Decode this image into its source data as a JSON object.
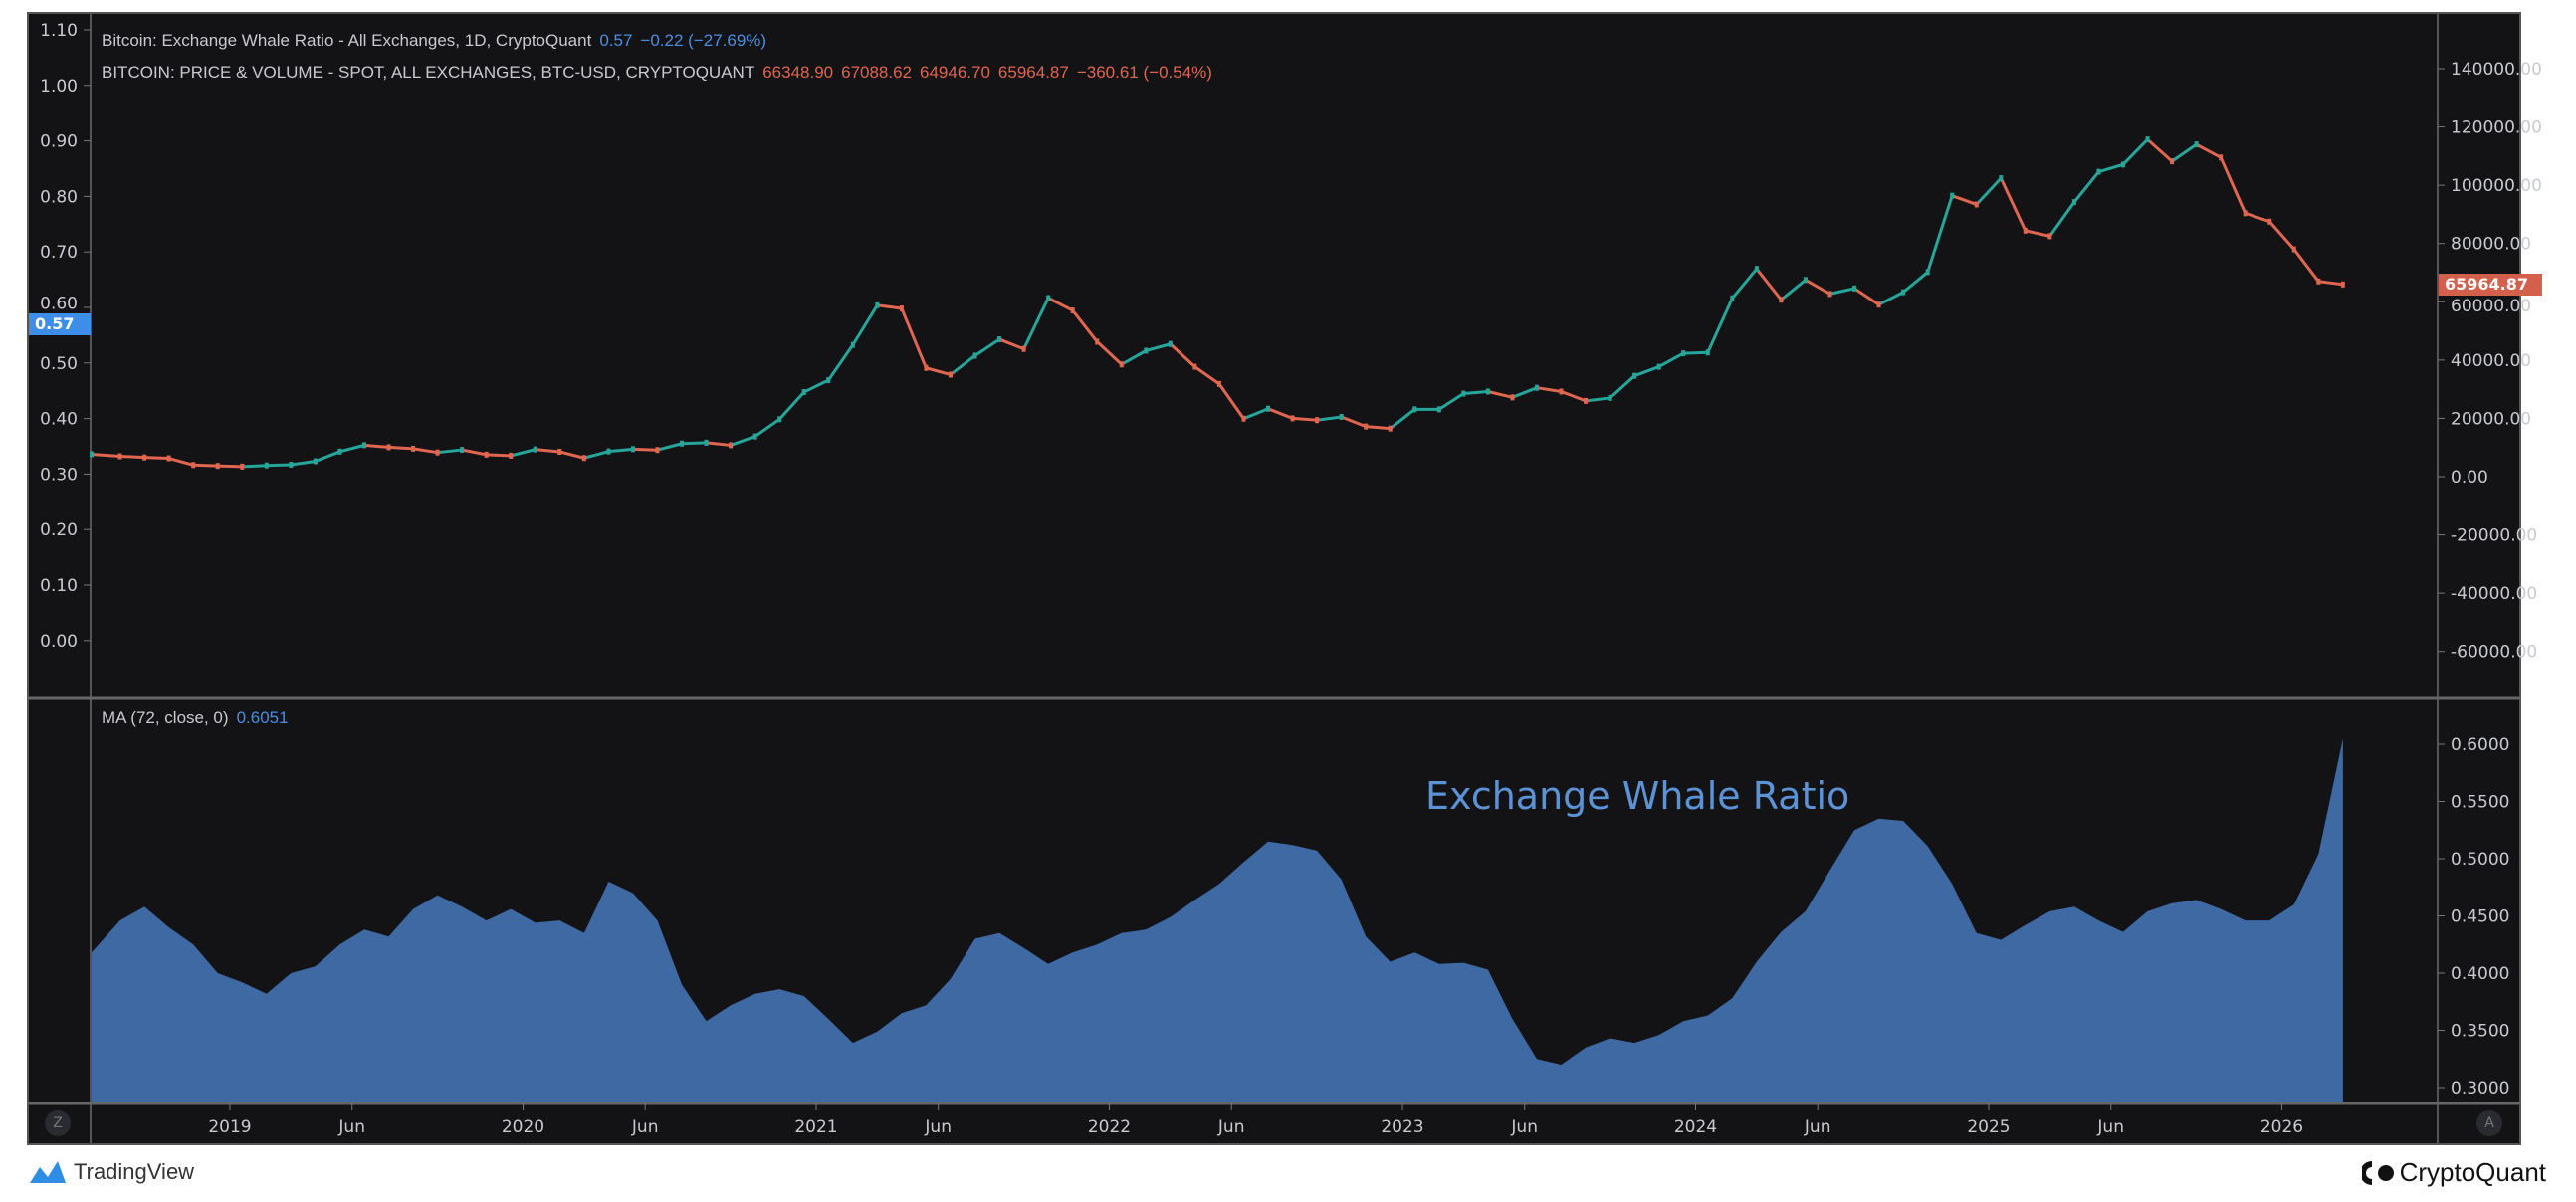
{
  "legend": {
    "line1_label": "Bitcoin: Exchange Whale Ratio - All Exchanges, 1D, CryptoQuant",
    "line1_values": [
      "0.57",
      "−0.22 (−27.69%)"
    ],
    "line2_label": "BITCOIN: PRICE & VOLUME - SPOT, ALL EXCHANGES, BTC-USD, CRYPTOQUANT",
    "line2_values": [
      "66348.90",
      "67088.62",
      "64946.70",
      "65964.87",
      "−360.61 (−0.54%)"
    ],
    "ma_label": "MA (72, close, 0)",
    "ma_value": "0.6051"
  },
  "annotation": "Exchange Whale Ratio",
  "badges": {
    "ratio_last": "0.57",
    "price_last": "65964.87"
  },
  "buttons": {
    "left_corner": "Z",
    "right_corner": "A"
  },
  "footer": {
    "left_brand": "TradingView",
    "right_brand": "CryptoQuant"
  },
  "colors": {
    "background": "#131316",
    "area": "#3f69a3",
    "price_up": "#26a69a",
    "price_down": "#e0664f",
    "ratio_badge": "#3d8ee8",
    "price_badge": "#d3604a",
    "text": "#c8cad0"
  },
  "chart_data": [
    {
      "type": "line",
      "pane": "top",
      "series_label": "BITCOIN: PRICE & VOLUME - SPOT, ALL EXCHANGES, BTC-USD, CRYPTOQUANT",
      "left_axis_ticks": [
        "1.10",
        "1.00",
        "0.90",
        "0.80",
        "0.70",
        "0.60",
        "0.50",
        "0.40",
        "0.30",
        "0.20",
        "0.10",
        "0.00"
      ],
      "left_ylim": [
        -0.1,
        1.12
      ],
      "right_axis_ticks": [
        "140000.00",
        "120000.00",
        "100000.00",
        "80000.00",
        "60000.00",
        "40000.00",
        "20000.00",
        "0.00",
        "-20000.00",
        "-40000.00",
        "-60000.00"
      ],
      "right_ylim": [
        -70000,
        150000
      ],
      "x": [
        "2018-07",
        "2018-08",
        "2018-09",
        "2018-10",
        "2018-11",
        "2018-12",
        "2019-01",
        "2019-02",
        "2019-03",
        "2019-04",
        "2019-05",
        "2019-06",
        "2019-07",
        "2019-08",
        "2019-09",
        "2019-10",
        "2019-11",
        "2019-12",
        "2020-01",
        "2020-02",
        "2020-03",
        "2020-04",
        "2020-05",
        "2020-06",
        "2020-07",
        "2020-08",
        "2020-09",
        "2020-10",
        "2020-11",
        "2020-12",
        "2021-01",
        "2021-02",
        "2021-03",
        "2021-04",
        "2021-05",
        "2021-06",
        "2021-07",
        "2021-08",
        "2021-09",
        "2021-10",
        "2021-11",
        "2021-12",
        "2022-01",
        "2022-02",
        "2022-03",
        "2022-04",
        "2022-05",
        "2022-06",
        "2022-07",
        "2022-08",
        "2022-09",
        "2022-10",
        "2022-11",
        "2022-12",
        "2023-01",
        "2023-02",
        "2023-03",
        "2023-04",
        "2023-05",
        "2023-06",
        "2023-07",
        "2023-08",
        "2023-09",
        "2023-10",
        "2023-11",
        "2023-12",
        "2024-01",
        "2024-02",
        "2024-03",
        "2024-04",
        "2024-05",
        "2024-06",
        "2024-07",
        "2024-08",
        "2024-09",
        "2024-10",
        "2024-11",
        "2024-12",
        "2025-01",
        "2025-02",
        "2025-03",
        "2025-04",
        "2025-05",
        "2025-06",
        "2025-07",
        "2025-08",
        "2025-09",
        "2025-10",
        "2025-11",
        "2025-12",
        "2026-01",
        "2026-02",
        "2026-03"
      ],
      "values": [
        7700,
        7000,
        6600,
        6300,
        4000,
        3700,
        3450,
        3850,
        4100,
        5300,
        8600,
        10800,
        10100,
        9600,
        8300,
        9200,
        7550,
        7200,
        9350,
        8550,
        6400,
        8650,
        9450,
        9150,
        11350,
        11650,
        10780,
        13800,
        19700,
        29000,
        33100,
        45200,
        58800,
        57700,
        37300,
        35000,
        41500,
        47100,
        43800,
        61300,
        57000,
        46300,
        38500,
        43200,
        45500,
        37700,
        31800,
        19900,
        23300,
        20000,
        19400,
        20500,
        17200,
        16500,
        23100,
        23100,
        28500,
        29200,
        27200,
        30500,
        29200,
        26000,
        27000,
        34600,
        37700,
        42300,
        42600,
        61200,
        71300,
        60700,
        67500,
        62700,
        64600,
        59000,
        63300,
        70200,
        96400,
        93400,
        102400,
        84400,
        82500,
        94200,
        104600,
        107100,
        115700,
        108200,
        114000,
        109500,
        90400,
        87500,
        78000,
        67000,
        65964.87
      ]
    },
    {
      "type": "area",
      "pane": "bottom",
      "series_label": "MA (72, close, 0)",
      "right_axis_ticks": [
        "0.6000",
        "0.5500",
        "0.5000",
        "0.4500",
        "0.4000",
        "0.3500",
        "0.3000"
      ],
      "ylim": [
        0.293,
        0.64
      ],
      "x_ticks": [
        "2019",
        "Jun",
        "2020",
        "Jun",
        "2021",
        "Jun",
        "2022",
        "Jun",
        "2023",
        "Jun",
        "2024",
        "Jun",
        "2025",
        "Jun",
        "2026"
      ],
      "x": [
        "2018-07",
        "2018-08",
        "2018-09",
        "2018-10",
        "2018-11",
        "2018-12",
        "2019-01",
        "2019-02",
        "2019-03",
        "2019-04",
        "2019-05",
        "2019-06",
        "2019-07",
        "2019-08",
        "2019-09",
        "2019-10",
        "2019-11",
        "2019-12",
        "2020-01",
        "2020-02",
        "2020-03",
        "2020-04",
        "2020-05",
        "2020-06",
        "2020-07",
        "2020-08",
        "2020-09",
        "2020-10",
        "2020-11",
        "2020-12",
        "2021-01",
        "2021-02",
        "2021-03",
        "2021-04",
        "2021-05",
        "2021-06",
        "2021-07",
        "2021-08",
        "2021-09",
        "2021-10",
        "2021-11",
        "2021-12",
        "2022-01",
        "2022-02",
        "2022-03",
        "2022-04",
        "2022-05",
        "2022-06",
        "2022-07",
        "2022-08",
        "2022-09",
        "2022-10",
        "2022-11",
        "2022-12",
        "2023-01",
        "2023-02",
        "2023-03",
        "2023-04",
        "2023-05",
        "2023-06",
        "2023-07",
        "2023-08",
        "2023-09",
        "2023-10",
        "2023-11",
        "2023-12",
        "2024-01",
        "2024-02",
        "2024-03",
        "2024-04",
        "2024-05",
        "2024-06",
        "2024-07",
        "2024-08",
        "2024-09",
        "2024-10",
        "2024-11",
        "2024-12",
        "2025-01",
        "2025-02",
        "2025-03",
        "2025-04",
        "2025-05",
        "2025-06",
        "2025-07",
        "2025-08",
        "2025-09",
        "2025-10",
        "2025-11",
        "2025-12",
        "2026-01",
        "2026-02",
        "2026-03"
      ],
      "values": [
        0.418,
        0.446,
        0.458,
        0.44,
        0.425,
        0.4,
        0.392,
        0.382,
        0.4,
        0.406,
        0.425,
        0.438,
        0.432,
        0.456,
        0.468,
        0.458,
        0.446,
        0.456,
        0.444,
        0.446,
        0.435,
        0.48,
        0.47,
        0.446,
        0.39,
        0.358,
        0.372,
        0.382,
        0.386,
        0.38,
        0.36,
        0.339,
        0.349,
        0.365,
        0.372,
        0.395,
        0.43,
        0.435,
        0.422,
        0.408,
        0.418,
        0.425,
        0.435,
        0.438,
        0.449,
        0.464,
        0.478,
        0.497,
        0.515,
        0.512,
        0.507,
        0.482,
        0.432,
        0.41,
        0.418,
        0.408,
        0.409,
        0.403,
        0.36,
        0.325,
        0.32,
        0.335,
        0.343,
        0.339,
        0.346,
        0.358,
        0.363,
        0.378,
        0.41,
        0.436,
        0.454,
        0.49,
        0.525,
        0.535,
        0.533,
        0.511,
        0.478,
        0.435,
        0.429,
        0.442,
        0.454,
        0.458,
        0.446,
        0.436,
        0.454,
        0.461,
        0.464,
        0.456,
        0.446,
        0.446,
        0.46,
        0.504,
        0.6051
      ]
    }
  ]
}
